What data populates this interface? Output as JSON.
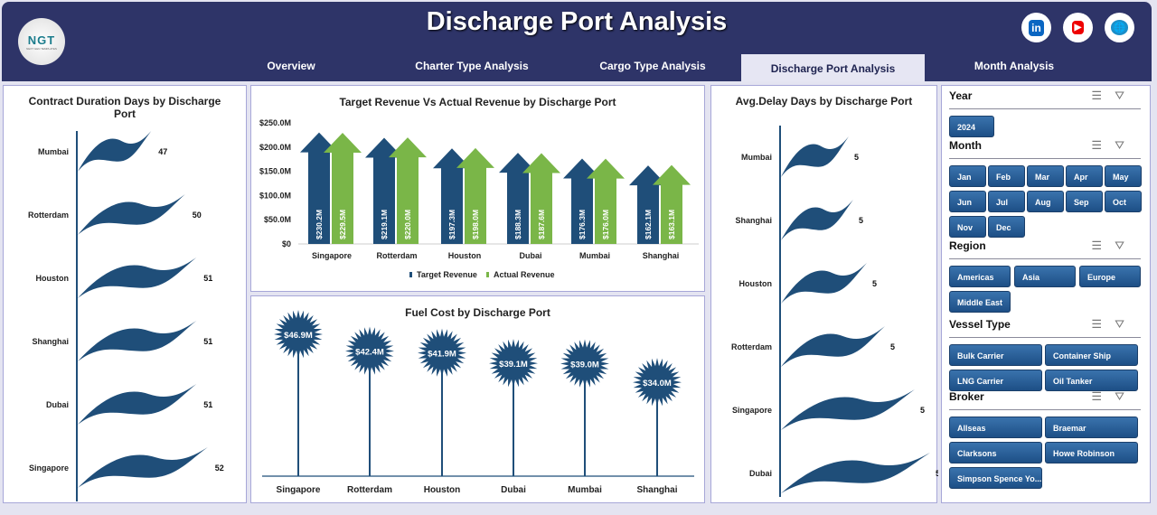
{
  "header": {
    "title": "Discharge Port Analysis",
    "logo_text": "NGT",
    "logo_sub": "NEXT GEN TEMPLATES"
  },
  "tabs": [
    {
      "label": "Overview"
    },
    {
      "label": "Charter Type Analysis"
    },
    {
      "label": "Cargo Type Analysis"
    },
    {
      "label": "Discharge Port Analysis",
      "active": true
    },
    {
      "label": "Month Analysis"
    }
  ],
  "social": [
    {
      "icon": "linkedin-icon",
      "label": "in"
    },
    {
      "icon": "youtube-icon",
      "label": "▶"
    },
    {
      "icon": "globe-icon",
      "label": "🌐"
    }
  ],
  "contract_chart": {
    "title": "Contract Duration Days by Discharge Port",
    "type": "bar",
    "categories": [
      "Mumbai",
      "Rotterdam",
      "Houston",
      "Shanghai",
      "Dubai",
      "Singapore"
    ],
    "values": [
      47,
      50,
      51,
      51,
      51,
      52
    ]
  },
  "revenue_chart": {
    "title": "Target Revenue Vs Actual Revenue by Discharge Port",
    "type": "bar",
    "categories": [
      "Singapore",
      "Rotterdam",
      "Houston",
      "Dubai",
      "Mumbai",
      "Shanghai"
    ],
    "ylim": [
      0,
      250
    ],
    "yticks": [
      "$0",
      "$50.0M",
      "$100.0M",
      "$150.0M",
      "$200.0M",
      "$250.0M"
    ],
    "legend": "bottom",
    "series": [
      {
        "name": "Target Revenue",
        "color": "#1f4e79",
        "values": [
          230.2,
          219.1,
          197.3,
          188.3,
          176.3,
          162.1
        ],
        "labels": [
          "$230.2M",
          "$219.1M",
          "$197.3M",
          "$188.3M",
          "$176.3M",
          "$162.1M"
        ]
      },
      {
        "name": "Actual Revenue",
        "color": "#7ab648",
        "values": [
          229.5,
          220.0,
          198.0,
          187.6,
          176.0,
          163.1
        ],
        "labels": [
          "$229.5M",
          "$220.0M",
          "$198.0M",
          "$187.6M",
          "$176.0M",
          "$163.1M"
        ]
      }
    ]
  },
  "fuel_chart": {
    "title": "Fuel Cost by Discharge Port",
    "type": "bar",
    "categories": [
      "Singapore",
      "Rotterdam",
      "Houston",
      "Dubai",
      "Mumbai",
      "Shanghai"
    ],
    "values": [
      46.9,
      42.4,
      41.9,
      39.1,
      39.0,
      34.0
    ],
    "labels": [
      "$46.9M",
      "$42.4M",
      "$41.9M",
      "$39.1M",
      "$39.0M",
      "$34.0M"
    ]
  },
  "delay_chart": {
    "title": "Avg.Delay Days by Discharge Port",
    "type": "bar",
    "categories": [
      "Mumbai",
      "Shanghai",
      "Houston",
      "Rotterdam",
      "Singapore",
      "Dubai"
    ],
    "values": [
      5,
      5,
      5,
      5,
      5,
      5
    ]
  },
  "slicers": [
    {
      "title": "Year",
      "items": [
        "2024"
      ]
    },
    {
      "title": "Month",
      "items": [
        "Jan",
        "Feb",
        "Mar",
        "Apr",
        "May",
        "Jun",
        "Jul",
        "Aug",
        "Sep",
        "Oct",
        "Nov",
        "Dec"
      ]
    },
    {
      "title": "Region",
      "items": [
        "Americas",
        "Asia",
        "Europe",
        "Middle East"
      ]
    },
    {
      "title": "Vessel Type",
      "items": [
        "Bulk Carrier",
        "Container Ship",
        "LNG Carrier",
        "Oil Tanker"
      ]
    },
    {
      "title": "Broker",
      "items": [
        "Allseas",
        "Braemar",
        "Clarksons",
        "Howe Robinson",
        "Simpson Spence Yo..."
      ]
    }
  ],
  "colors": {
    "header": "#2e3468",
    "flag": "#1f4e79",
    "target": "#1f4e79",
    "actual": "#7ab648"
  }
}
